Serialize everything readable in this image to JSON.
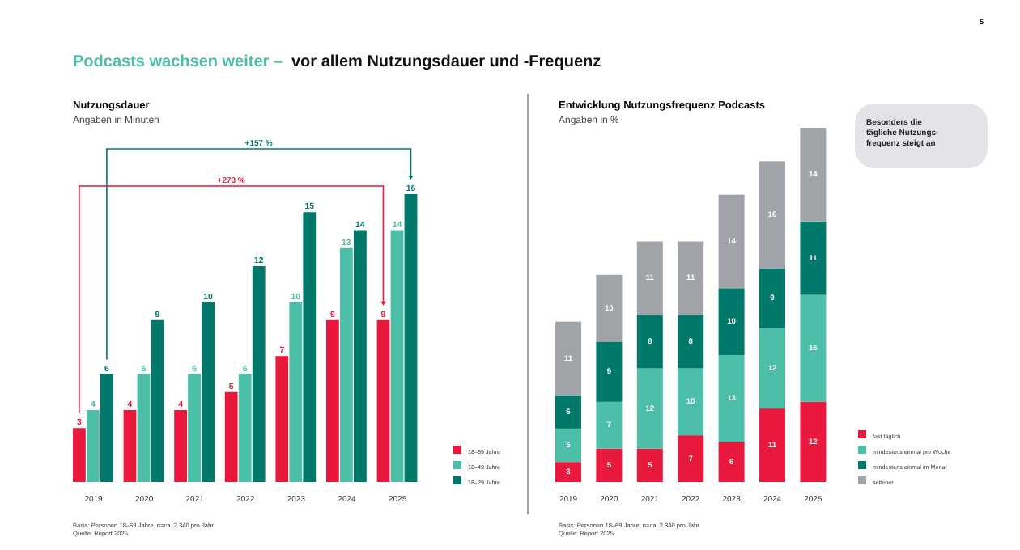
{
  "chart_data": [
    {
      "type": "bar",
      "title": "Nutzungsdauer",
      "subtitle": "Angaben in Minuten",
      "categories": [
        "2019",
        "2020",
        "2021",
        "2022",
        "2023",
        "2024",
        "2025"
      ],
      "series": [
        {
          "name": "18–69 Jahre",
          "color": "#e8193c",
          "values": [
            3,
            4,
            4,
            5,
            7,
            9,
            9
          ]
        },
        {
          "name": "18–49 Jahre",
          "color": "#4dbfa8",
          "values": [
            4,
            6,
            6,
            6,
            10,
            13,
            14
          ]
        },
        {
          "name": "18–29 Jahre",
          "color": "#00796b",
          "values": [
            6,
            9,
            10,
            12,
            15,
            14,
            16
          ]
        }
      ],
      "data_labels": true,
      "legend": "bottom right",
      "annotations": [
        "Podcasts wachsen weiter –",
        "vor allem Nutzungsdauer und -Frequenz",
        "5",
        "Basis: Personen 18–69 Jahre, n=ca. 2.340 pro Jahr",
        "Quelle: Report 2025",
        "+157 %",
        "+273 %"
      ]
    },
    {
      "type": "bar",
      "stacked": true,
      "title": "Entwicklung Nutzungsfrequenz Podcasts",
      "subtitle": "Angaben in %",
      "categories": [
        "2019",
        "2020",
        "2021",
        "2022",
        "2023",
        "2024",
        "2025"
      ],
      "series": [
        {
          "name": "fast täglich",
          "color": "#e8193c",
          "values": [
            3,
            5,
            5,
            7,
            6,
            11,
            12
          ]
        },
        {
          "name": "mindestens einmal pro Woche",
          "color": "#4dbfa8",
          "values": [
            5,
            7,
            12,
            10,
            13,
            12,
            16
          ]
        },
        {
          "name": "mindestens einmal im Monat",
          "color": "#00796b",
          "values": [
            5,
            9,
            8,
            8,
            10,
            9,
            11
          ]
        },
        {
          "name": "seltener",
          "color": "#a0a4a8",
          "values": [
            11,
            10,
            11,
            11,
            14,
            16,
            14
          ]
        }
      ],
      "data_labels": true,
      "legend": "bottom right",
      "annotations": [
        "Besonders die\ntägliche Nutzungs-\nfrequenz steigt an",
        "Basis: Personen 18–69 Jahre, n=ca. 2.340 pro Jahr",
        "Quelle: Report 2025"
      ]
    }
  ]
}
